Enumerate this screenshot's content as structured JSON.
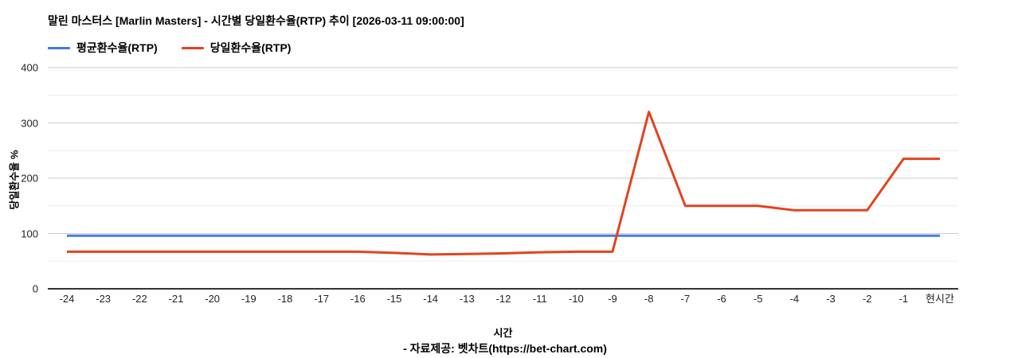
{
  "title": "말린 마스터스 [Marlin Masters] - 시간별 당일환수율(RTP) 추이 [2026-03-11 09:00:00]",
  "footer": "- 자료제공: 벳차트(https://bet-chart.com)",
  "colors": {
    "average_series": "#4679e1",
    "daily_series": "#e2431e",
    "grid_major": "#cccccc",
    "grid_minor": "#ebebeb",
    "axis_line": "#333333"
  },
  "legend": [
    {
      "label": "평균환수율(RTP)",
      "color": "#4679e1"
    },
    {
      "label": "당일환수율(RTP)",
      "color": "#e2431e"
    }
  ],
  "chart_data": {
    "type": "line",
    "title": "말린 마스터스 [Marlin Masters] - 시간별 당일환수율(RTP) 추이 [2026-03-11 09:00:00]",
    "xlabel": "시간",
    "ylabel": "당일환수율 %",
    "ylim": [
      0,
      400
    ],
    "y_ticks": [
      0,
      100,
      200,
      300,
      400
    ],
    "y_minor_ticks": [
      50,
      150,
      250,
      350
    ],
    "grid": true,
    "legend_position": "top",
    "categories": [
      "-24",
      "-23",
      "-22",
      "-21",
      "-20",
      "-19",
      "-18",
      "-17",
      "-16",
      "-15",
      "-14",
      "-13",
      "-12",
      "-11",
      "-10",
      "-9",
      "-8",
      "-7",
      "-6",
      "-5",
      "-4",
      "-3",
      "-2",
      "-1",
      "현시간"
    ],
    "series": [
      {
        "name": "평균환수율(RTP)",
        "color": "#4679e1",
        "values": [
          96,
          96,
          96,
          96,
          96,
          96,
          96,
          96,
          96,
          96,
          96,
          96,
          96,
          96,
          96,
          96,
          96,
          96,
          96,
          96,
          96,
          96,
          96,
          96,
          96
        ]
      },
      {
        "name": "당일환수율(RTP)",
        "color": "#e2431e",
        "values": [
          67,
          67,
          67,
          67,
          67,
          67,
          67,
          67,
          67,
          65,
          62,
          63,
          64,
          66,
          67,
          67,
          320,
          150,
          150,
          150,
          142,
          142,
          142,
          235,
          235
        ]
      }
    ]
  }
}
